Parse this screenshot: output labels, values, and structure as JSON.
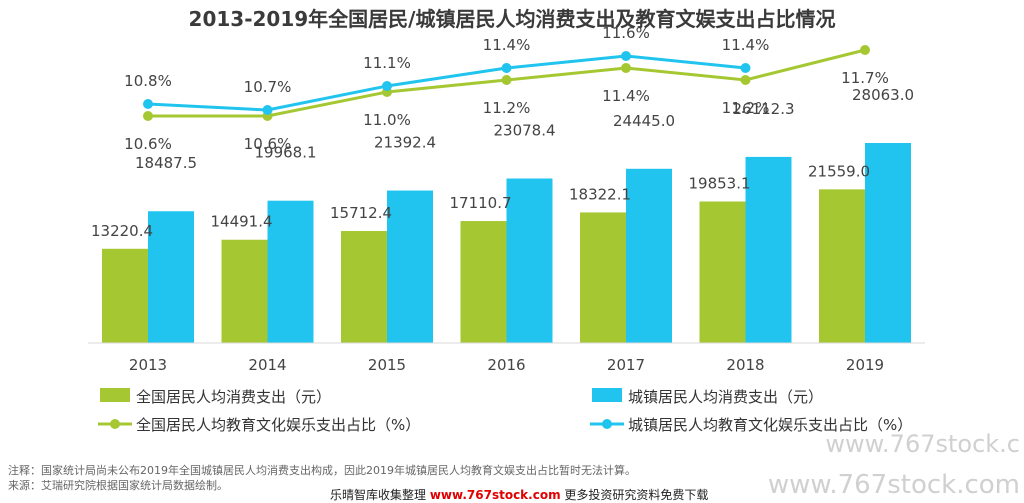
{
  "chart_data": {
    "type": "bar",
    "title": "2013-2019年全国居民/城镇居民人均消费支出及教育文娱支出占比情况",
    "categories": [
      "2013",
      "2014",
      "2015",
      "2016",
      "2017",
      "2018",
      "2019"
    ],
    "series": [
      {
        "name": "全国居民人均消费支出（元）",
        "kind": "bar",
        "color": "#a5c832",
        "values": [
          13220.4,
          14491.4,
          15712.4,
          17110.7,
          18322.1,
          19853.1,
          21559.0
        ],
        "labels": [
          "13220.4",
          "14491.4",
          "15712.4",
          "17110.7",
          "18322.1",
          "19853.1",
          "21559.0"
        ]
      },
      {
        "name": "城镇居民人均消费支出（元）",
        "kind": "bar",
        "color": "#21c4ee",
        "values": [
          18487.5,
          19968.1,
          21392.4,
          23078.4,
          24445.0,
          26112.3,
          28063.0
        ],
        "labels": [
          "18487.5",
          "19968.1",
          "21392.4",
          "23078.4",
          "24445.0",
          "26112.3",
          "28063.0"
        ]
      },
      {
        "name": "全国居民人均教育文化娱乐支出占比（%）",
        "kind": "line",
        "color": "#a5c832",
        "values": [
          10.6,
          10.6,
          11.0,
          11.2,
          11.4,
          11.2,
          11.7
        ],
        "labels": [
          "10.6%",
          "10.6%",
          "11.0%",
          "11.2%",
          "11.4%",
          "11.2%",
          "11.7%"
        ]
      },
      {
        "name": "城镇居民人均教育文化娱乐支出占比（%）",
        "kind": "line",
        "color": "#21c4ee",
        "values": [
          10.8,
          10.7,
          11.1,
          11.4,
          11.6,
          11.4,
          null
        ],
        "labels": [
          "10.8%",
          "10.7%",
          "11.1%",
          "11.4%",
          "11.6%",
          "11.4%",
          ""
        ]
      }
    ],
    "grid": false,
    "legend_position": "bottom"
  },
  "notes": {
    "note": "注释：国家统计局尚未公布2019年全国城镇居民人均消费支出构成，因此2019年城镇居民人均教育文娱支出占比暂时无法计算。",
    "source": "来源：艾瑞研究院根据国家统计局数据绘制。"
  },
  "watermark": {
    "side_top": "www.767stock.c",
    "side_bottom": "www.767stock.com"
  },
  "footer": {
    "prefix": "乐晴智库收集整理",
    "site": "www.767stock.com",
    "suffix": "更多投资研究资料免费下载"
  }
}
